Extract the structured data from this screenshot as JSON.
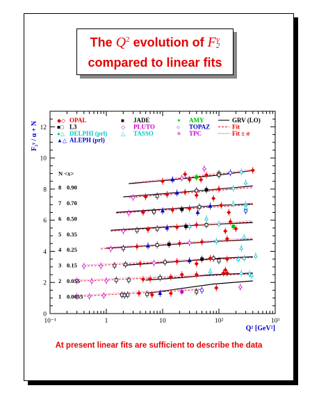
{
  "title": {
    "line1_prefix": "The ",
    "q_symbol": "Q",
    "q_exp": "2",
    "line1_middle": " evolution of ",
    "f_symbol": "F",
    "f_sub": "2",
    "f_sup": "γ",
    "line2": "compared to linear fits"
  },
  "footer": "At present linear fits are sufficient to describe the data",
  "colors": {
    "title": "#e60000",
    "opal": "#e60000",
    "l3": "#000000",
    "delphi": "#00c8c8",
    "aleph": "#0000c8",
    "jade": "#000000",
    "pluto": "#c800c8",
    "tasso": "#00c8c8",
    "amy": "#00c000",
    "topaz": "#0000c8",
    "tpc": "#c800c8",
    "axis": "#0000c8"
  },
  "chart_data": {
    "type": "scatter",
    "xscale": "log",
    "xlim": [
      0.1,
      1000
    ],
    "ylim": [
      0,
      13
    ],
    "xlabel": "Q² [GeV²]",
    "ylabel": "F₂ᵞ / α + N",
    "x_ticks": [
      "10⁻¹",
      "1",
      "10",
      "10²",
      "10³"
    ],
    "y_ticks": [
      "0",
      "2",
      "4",
      "6",
      "8",
      "10",
      "12"
    ],
    "table_header": "N <x>",
    "bins": [
      {
        "N": "1",
        "x": "0.0055",
        "offset": 1,
        "grv": [
          [
            5,
            1.28
          ],
          [
            20,
            1.6
          ],
          [
            80,
            1.9
          ],
          [
            400,
            2.1
          ]
        ],
        "fit": [
          [
            0.3,
            1.1
          ],
          [
            50,
            1.55
          ]
        ],
        "points": [
          [
            0.3,
            1.1,
            "pluto"
          ],
          [
            0.5,
            1.1,
            "pluto"
          ],
          [
            0.9,
            1.15,
            "pluto"
          ],
          [
            1.9,
            1.2,
            "l3"
          ],
          [
            2.1,
            1.17,
            "l3"
          ],
          [
            2.4,
            1.2,
            "l3"
          ],
          [
            3.8,
            1.3,
            "opal"
          ],
          [
            5.3,
            1.25,
            "l3"
          ],
          [
            6.5,
            1.2,
            "opal"
          ],
          [
            9,
            1.3,
            "aleph"
          ],
          [
            14,
            1.3,
            "opal"
          ],
          [
            22,
            1.4,
            "tpc"
          ],
          [
            50,
            1.5,
            "topaz"
          ]
        ]
      },
      {
        "N": "2",
        "x": "0.055",
        "offset": 2,
        "grv": [
          [
            5,
            2.15
          ],
          [
            20,
            2.3
          ],
          [
            80,
            2.5
          ],
          [
            400,
            2.6
          ]
        ],
        "fit": [
          [
            0.3,
            2.08
          ],
          [
            400,
            2.55
          ]
        ],
        "points": [
          [
            0.3,
            2.1,
            "pluto"
          ],
          [
            0.55,
            2.07,
            "pluto"
          ],
          [
            1.0,
            2.1,
            "pluto"
          ],
          [
            1.5,
            2.15,
            "l3"
          ],
          [
            2.5,
            2.15,
            "l3"
          ],
          [
            4.5,
            2.2,
            "opal"
          ],
          [
            6,
            2.22,
            "opal"
          ],
          [
            9,
            2.3,
            "l3"
          ],
          [
            14,
            2.35,
            "opal"
          ],
          [
            22,
            2.5,
            "opal"
          ],
          [
            40,
            2.5,
            "opal"
          ],
          [
            70,
            2.7,
            "delphi"
          ],
          [
            140,
            2.6,
            "opal"
          ],
          [
            350,
            2.55,
            "delphi"
          ]
        ]
      },
      {
        "N": "3",
        "x": "0.15",
        "offset": 3,
        "grv": [
          [
            2,
            3.1
          ],
          [
            20,
            3.35
          ],
          [
            100,
            3.55
          ],
          [
            400,
            3.65
          ]
        ],
        "fit": [
          [
            0.4,
            3.05
          ],
          [
            400,
            3.6
          ]
        ],
        "points": [
          [
            0.4,
            3.05,
            "pluto"
          ],
          [
            0.8,
            3.05,
            "pluto"
          ],
          [
            1.4,
            3.08,
            "l3"
          ],
          [
            2.2,
            3.15,
            "l3"
          ],
          [
            4,
            3.2,
            "opal"
          ],
          [
            7,
            3.25,
            "pluto"
          ],
          [
            11,
            3.3,
            "l3"
          ],
          [
            18,
            3.35,
            "opal"
          ],
          [
            30,
            3.4,
            "aleph"
          ],
          [
            50,
            3.5,
            "jade"
          ],
          [
            80,
            3.55,
            "l3"
          ],
          [
            140,
            3.5,
            "opal"
          ],
          [
            280,
            3.55,
            "delphi"
          ]
        ]
      },
      {
        "N": "4",
        "x": "0.25",
        "offset": 4,
        "grv": [
          [
            1,
            4.2
          ],
          [
            10,
            4.4
          ],
          [
            100,
            4.65
          ],
          [
            400,
            4.75
          ]
        ],
        "fit": [
          [
            0.8,
            4.15
          ],
          [
            400,
            4.8
          ]
        ],
        "points": [
          [
            1.2,
            4.15,
            "pluto"
          ],
          [
            2,
            4.2,
            "l3"
          ],
          [
            3.5,
            4.3,
            "opal"
          ],
          [
            5.5,
            4.35,
            "aleph"
          ],
          [
            8,
            4.4,
            "l3"
          ],
          [
            13,
            4.45,
            "jade"
          ],
          [
            20,
            4.5,
            "opal"
          ],
          [
            30,
            4.55,
            "pluto"
          ],
          [
            50,
            4.6,
            "opal"
          ],
          [
            90,
            4.65,
            "delphi"
          ],
          [
            140,
            4.8,
            "opal"
          ],
          [
            280,
            4.9,
            "delphi"
          ]
        ]
      },
      {
        "N": "5",
        "x": "0.35",
        "offset": 5,
        "grv": [
          [
            1.2,
            5.35
          ],
          [
            10,
            5.55
          ],
          [
            100,
            5.75
          ],
          [
            400,
            5.85
          ]
        ],
        "fit": [
          [
            1.2,
            5.3
          ],
          [
            400,
            5.9
          ]
        ],
        "points": [
          [
            2,
            5.3,
            "pluto"
          ],
          [
            3.5,
            5.35,
            "l3"
          ],
          [
            5.5,
            5.4,
            "opal"
          ],
          [
            8,
            5.45,
            "l3"
          ],
          [
            12,
            5.5,
            "aleph"
          ],
          [
            18,
            5.55,
            "opal"
          ],
          [
            26,
            5.6,
            "jade"
          ],
          [
            40,
            5.7,
            "opal"
          ],
          [
            60,
            5.7,
            "l3"
          ],
          [
            100,
            5.75,
            "delphi"
          ],
          [
            160,
            5.9,
            "opal"
          ]
        ]
      },
      {
        "N": "6",
        "x": "0.50",
        "offset": 6,
        "grv": [
          [
            1.5,
            6.5
          ],
          [
            10,
            6.7
          ],
          [
            100,
            6.95
          ],
          [
            400,
            7.05
          ]
        ],
        "fit": [
          [
            1.5,
            6.45
          ],
          [
            400,
            7.0
          ]
        ],
        "points": [
          [
            2.5,
            6.45,
            "pluto"
          ],
          [
            4.5,
            6.5,
            "opal"
          ],
          [
            7,
            6.55,
            "l3"
          ],
          [
            10,
            6.6,
            "aleph"
          ],
          [
            15,
            6.65,
            "opal"
          ],
          [
            22,
            6.7,
            "jade"
          ],
          [
            30,
            6.75,
            "opal"
          ],
          [
            45,
            6.85,
            "l3"
          ],
          [
            70,
            6.9,
            "aleph"
          ],
          [
            110,
            6.95,
            "opal"
          ],
          [
            180,
            7.05,
            "delphi"
          ]
        ]
      },
      {
        "N": "7",
        "x": "0.70",
        "offset": 7,
        "grv": [
          [
            2,
            7.5
          ],
          [
            10,
            7.7
          ],
          [
            100,
            8.0
          ],
          [
            400,
            8.2
          ]
        ],
        "fit": [
          [
            2.5,
            7.45
          ],
          [
            400,
            8.1
          ]
        ],
        "points": [
          [
            3,
            7.45,
            "pluto"
          ],
          [
            5,
            7.5,
            "opal"
          ],
          [
            8,
            7.55,
            "l3"
          ],
          [
            12,
            7.65,
            "opal"
          ],
          [
            18,
            7.75,
            "aleph"
          ],
          [
            25,
            7.8,
            "opal"
          ],
          [
            40,
            7.9,
            "l3"
          ],
          [
            60,
            7.95,
            "jade"
          ],
          [
            100,
            8.0,
            "opal"
          ],
          [
            180,
            8.05,
            "delphi"
          ]
        ]
      },
      {
        "N": "8",
        "x": "0.90",
        "offset": 8,
        "grv": [
          [
            2.5,
            8.35
          ],
          [
            15,
            8.6
          ],
          [
            100,
            8.9
          ],
          [
            400,
            9.2
          ]
        ],
        "fit": [
          [
            3,
            8.35
          ],
          [
            400,
            9.2
          ]
        ],
        "points": [
          [
            10,
            8.5,
            "opal"
          ],
          [
            15,
            8.6,
            "aleph"
          ],
          [
            22,
            8.7,
            "pluto"
          ],
          [
            40,
            8.75,
            "amy"
          ],
          [
            60,
            8.9,
            "opal"
          ],
          [
            100,
            9.0,
            "l3"
          ],
          [
            160,
            9.05,
            "topaz"
          ],
          [
            250,
            9.1,
            "delphi"
          ]
        ]
      }
    ],
    "extra_points": [
      [
        25,
        8.95,
        "opal"
      ],
      [
        30,
        8.6,
        "opal"
      ],
      [
        48,
        8.6,
        "opal"
      ],
      [
        100,
        8.9,
        "l3"
      ],
      [
        40,
        7.6,
        "opal"
      ],
      [
        80,
        7.4,
        "opal"
      ],
      [
        100,
        3.4,
        "l3"
      ],
      [
        120,
        2.6,
        "opal"
      ],
      [
        130,
        2.8,
        "opal"
      ],
      [
        250,
        2.6,
        "delphi"
      ],
      [
        380,
        2.45,
        "delphi"
      ],
      [
        240,
        1.7,
        "pluto"
      ],
      [
        90,
        1.65,
        "opal"
      ],
      [
        200,
        5.45,
        "opal"
      ],
      [
        250,
        4.2,
        "delphi"
      ],
      [
        300,
        6.6,
        "topaz"
      ],
      [
        70,
        3.55,
        "opal"
      ],
      [
        40,
        3.2,
        "opal"
      ],
      [
        60,
        6.1,
        "delphi"
      ],
      [
        150,
        6.5,
        "opal"
      ],
      [
        130,
        5.3,
        "opal"
      ],
      [
        30,
        5.6,
        "tasso"
      ],
      [
        220,
        3.5,
        "delphi"
      ],
      [
        40,
        1.4,
        "l3"
      ],
      [
        55,
        9.3,
        "pluto"
      ],
      [
        300,
        7.0,
        "delphi"
      ],
      [
        400,
        9.2,
        "opal"
      ],
      [
        300,
        8.4,
        "delphi"
      ],
      [
        42,
        6.5,
        "aleph"
      ],
      [
        300,
        6.8,
        "delphi"
      ],
      [
        180,
        5.6,
        "amy"
      ],
      [
        450,
        3.7,
        "delphi"
      ]
    ],
    "legend": [
      {
        "label": "OPAL",
        "marker": "◆◇",
        "color_key": "opal",
        "col": 0
      },
      {
        "label": "L3",
        "marker": "■□",
        "color_key": "l3",
        "col": 0
      },
      {
        "label": "DELPHI (prl)",
        "marker": "●△",
        "color_key": "delphi",
        "col": 0
      },
      {
        "label": "ALEPH (prl)",
        "marker": "▲△",
        "color_key": "aleph",
        "col": 0
      },
      {
        "label": "JADE",
        "marker": "■",
        "color_key": "jade",
        "col": 1
      },
      {
        "label": "PLUTO",
        "marker": "◇",
        "color_key": "pluto",
        "col": 1
      },
      {
        "label": "TASSO",
        "marker": "△",
        "color_key": "tasso",
        "col": 1
      },
      {
        "label": "AMY",
        "marker": "✶",
        "color_key": "amy",
        "col": 2
      },
      {
        "label": "TOPAZ",
        "marker": "○",
        "color_key": "topaz",
        "col": 2
      },
      {
        "label": "TPC",
        "marker": "✳",
        "color_key": "tpc",
        "col": 2
      },
      {
        "label": "GRV (LO)",
        "marker": "solid",
        "color_key": "l3",
        "col": 3
      },
      {
        "label": "Fit",
        "marker": "dash",
        "color_key": "opal",
        "col": 3
      },
      {
        "label": "Fit ± σ",
        "marker": "dot",
        "color_key": "opal",
        "col": 3
      }
    ]
  }
}
